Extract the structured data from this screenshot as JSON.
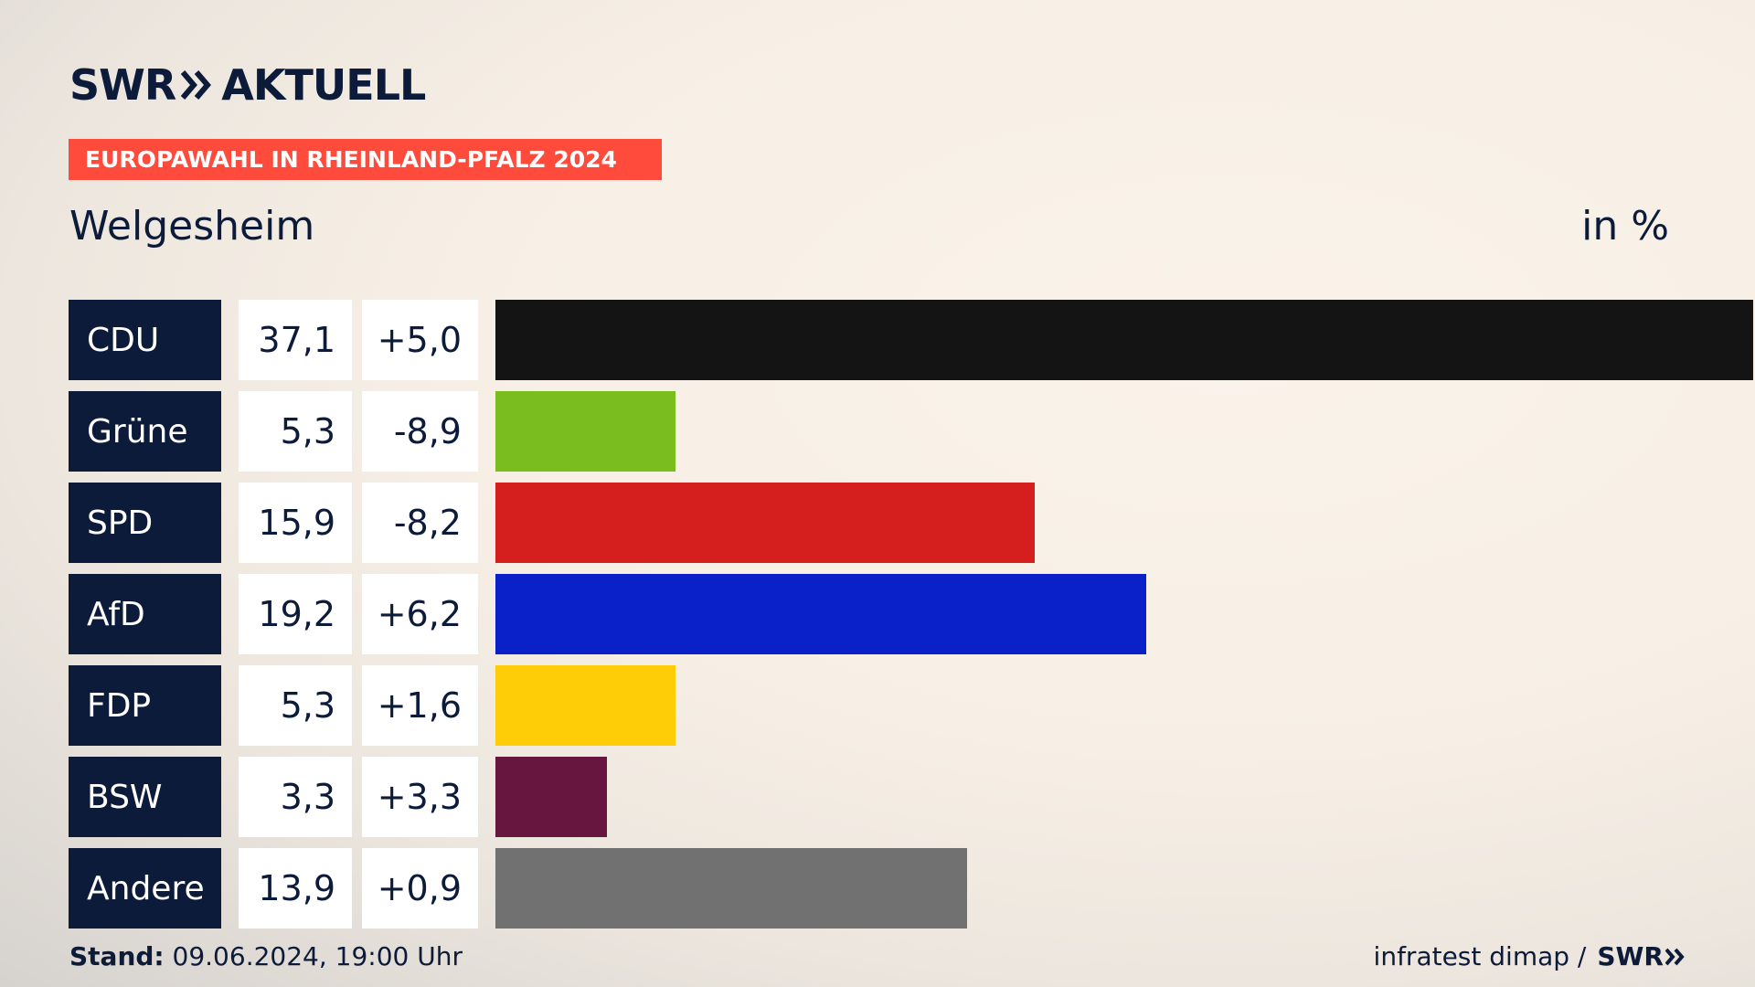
{
  "brand": {
    "logo_left": "SWR",
    "logo_right": "AKTUELL",
    "footer_logo": "SWR"
  },
  "tag": "EUROPAWAHL IN RHEINLAND-PFALZ 2024",
  "place": "Welgesheim",
  "unit": "in %",
  "footer": {
    "stand_label": "Stand:",
    "stand_value": "09.06.2024, 19:00 Uhr",
    "source": "infratest dimap /"
  },
  "chart_data": {
    "type": "bar",
    "orientation": "horizontal",
    "title": "Welgesheim",
    "unit": "in %",
    "categories": [
      "CDU",
      "Grüne",
      "SPD",
      "AfD",
      "FDP",
      "BSW",
      "Andere"
    ],
    "values": [
      37.1,
      5.3,
      15.9,
      19.2,
      5.3,
      3.3,
      13.9
    ],
    "value_labels": [
      "37,1",
      "5,3",
      "15,9",
      "19,2",
      "5,3",
      "3,3",
      "13,9"
    ],
    "changes": [
      5.0,
      -8.9,
      -8.2,
      6.2,
      1.6,
      3.3,
      0.9
    ],
    "change_labels": [
      "+5,0",
      "-8,9",
      "-8,2",
      "+6,2",
      "+1,6",
      "+3,3",
      "+0,9"
    ],
    "colors": [
      "#141414",
      "#79be1e",
      "#d51f1f",
      "#0a20c8",
      "#ffcc08",
      "#66163f",
      "#717171"
    ],
    "xlim": [
      0,
      37.1
    ]
  }
}
